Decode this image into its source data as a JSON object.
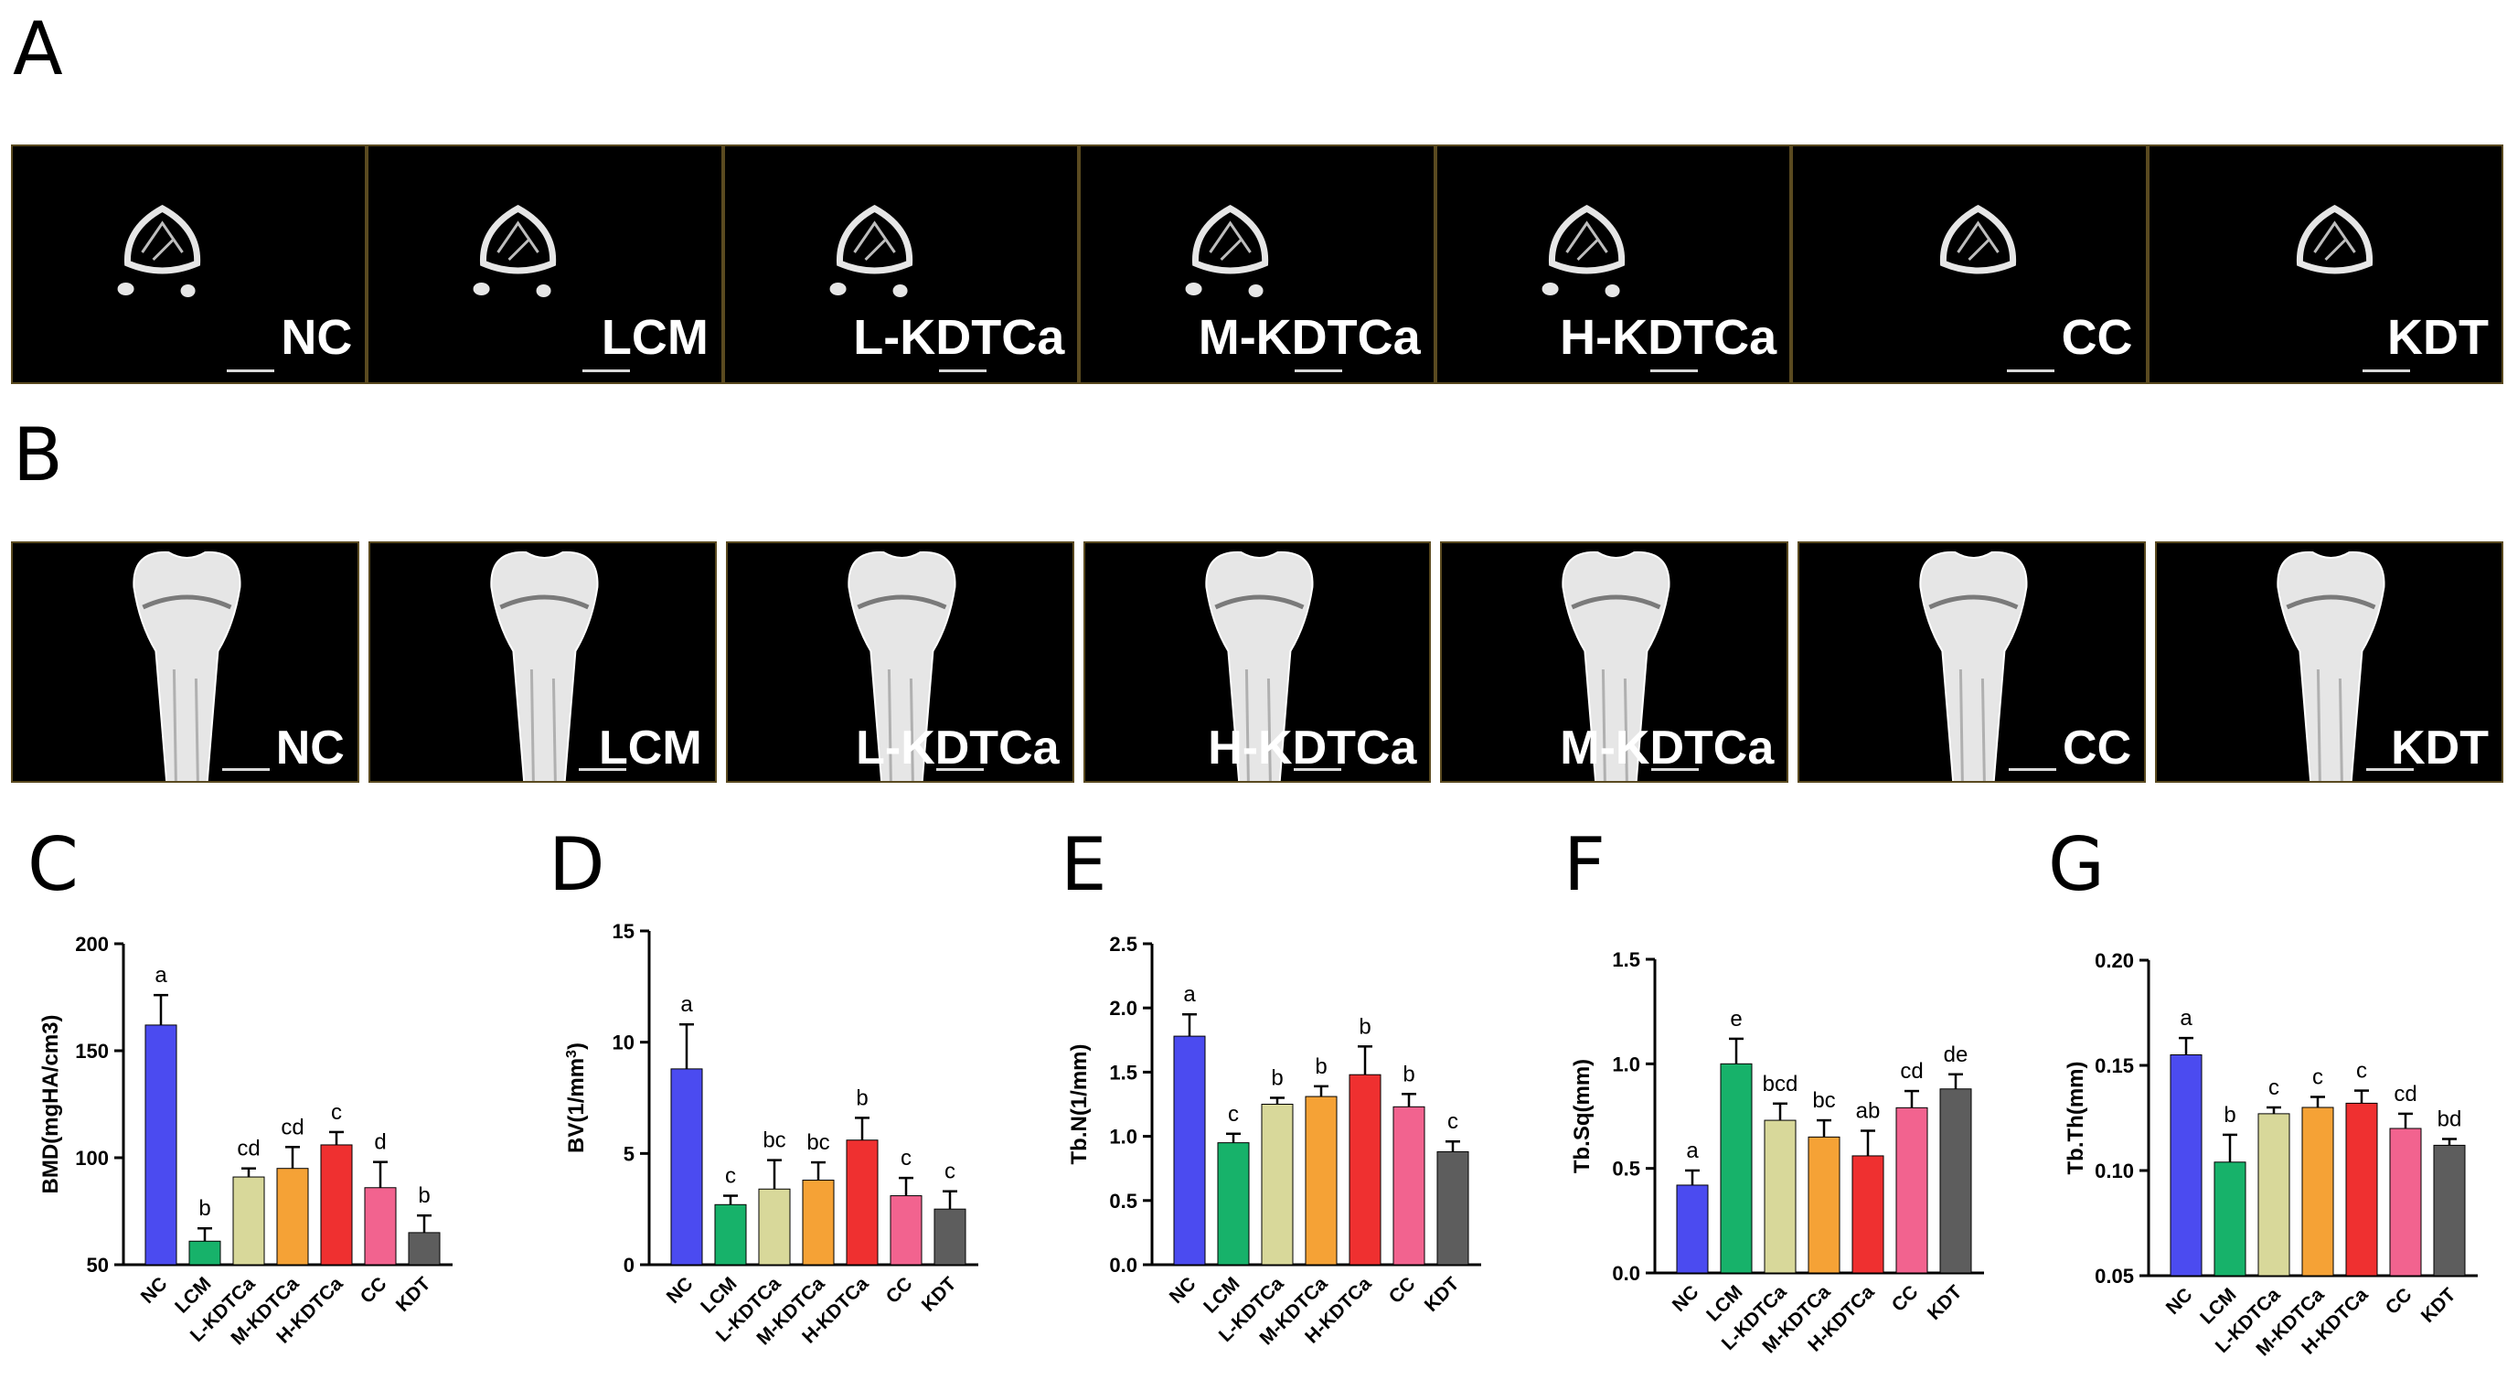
{
  "panels": {
    "a": {
      "letter": "A",
      "tiles": [
        {
          "label": "NC"
        },
        {
          "label": "LCM"
        },
        {
          "label": "L-KDTCa"
        },
        {
          "label": "M-KDTCa"
        },
        {
          "label": "H-KDTCa"
        },
        {
          "label": "CC"
        },
        {
          "label": "KDT"
        }
      ]
    },
    "b": {
      "letter": "B",
      "tiles": [
        {
          "label": "NC"
        },
        {
          "label": "LCM"
        },
        {
          "label": "L-KDTCa"
        },
        {
          "label": "H-KDTCa"
        },
        {
          "label": "M-KDTCa"
        },
        {
          "label": "CC"
        },
        {
          "label": "KDT"
        }
      ]
    }
  },
  "chart_data": [
    {
      "panel": "C",
      "type": "bar",
      "categories": [
        "NC",
        "LCM",
        "L-KDTCa",
        "M-KDTCa",
        "H-KDTCa",
        "CC",
        "KDT"
      ],
      "values": [
        162,
        61,
        91,
        95,
        106,
        86,
        65
      ],
      "errors": [
        14,
        6,
        4,
        10,
        6,
        12,
        8
      ],
      "letters": [
        "a",
        "b",
        "cd",
        "cd",
        "c",
        "d",
        "b"
      ],
      "ylabel": "BMD(mgHA/cm3)",
      "ylim": [
        50,
        200
      ],
      "yticks": [
        "50",
        "100",
        "150",
        "200"
      ],
      "ytick_values": [
        50,
        100,
        150,
        200
      ]
    },
    {
      "panel": "D",
      "type": "bar",
      "categories": [
        "NC",
        "LCM",
        "L-KDTCa",
        "M-KDTCa",
        "H-KDTCa",
        "CC",
        "KDT"
      ],
      "values": [
        8.8,
        2.7,
        3.4,
        3.8,
        5.6,
        3.1,
        2.5
      ],
      "errors": [
        2.0,
        0.4,
        1.3,
        0.8,
        1.0,
        0.8,
        0.8
      ],
      "letters": [
        "a",
        "c",
        "bc",
        "bc",
        "b",
        "c",
        "c"
      ],
      "ylabel": "BV(1/mm",
      "ylabel_sup": "3",
      "ylabel_end": ")",
      "ylim": [
        0,
        15
      ],
      "yticks": [
        "0",
        "5",
        "10",
        "15"
      ],
      "ytick_values": [
        0,
        5,
        10,
        15
      ]
    },
    {
      "panel": "E",
      "type": "bar",
      "categories": [
        "NC",
        "LCM",
        "L-KDTCa",
        "M-KDTCa",
        "H-KDTCa",
        "CC",
        "KDT"
      ],
      "values": [
        1.78,
        0.95,
        1.25,
        1.31,
        1.48,
        1.23,
        0.88
      ],
      "errors": [
        0.17,
        0.07,
        0.05,
        0.08,
        0.22,
        0.1,
        0.08
      ],
      "letters": [
        "a",
        "c",
        "b",
        "b",
        "b",
        "b",
        "c"
      ],
      "ylabel": "Tb.N(1/mm)",
      "ylim": [
        0,
        2.5
      ],
      "yticks": [
        "0.0",
        "0.5",
        "1.0",
        "1.5",
        "2.0",
        "2.5"
      ],
      "ytick_values": [
        0,
        0.5,
        1.0,
        1.5,
        2.0,
        2.5
      ]
    },
    {
      "panel": "F",
      "type": "bar",
      "categories": [
        "NC",
        "LCM",
        "L-KDTCa",
        "M-KDTCa",
        "H-KDTCa",
        "CC",
        "KDT"
      ],
      "values": [
        0.42,
        1.0,
        0.73,
        0.65,
        0.56,
        0.79,
        0.88
      ],
      "errors": [
        0.07,
        0.12,
        0.08,
        0.08,
        0.12,
        0.08,
        0.07
      ],
      "letters": [
        "a",
        "e",
        "bcd",
        "bc",
        "ab",
        "cd",
        "de"
      ],
      "ylabel": "Tb.Sq(mm)",
      "ylim": [
        0,
        1.5
      ],
      "yticks": [
        "0.0",
        "0.5",
        "1.0",
        "1.5"
      ],
      "ytick_values": [
        0,
        0.5,
        1.0,
        1.5
      ]
    },
    {
      "panel": "G",
      "type": "bar",
      "categories": [
        "NC",
        "LCM",
        "L-KDTCa",
        "M-KDTCa",
        "H-KDTCa",
        "CC",
        "KDT"
      ],
      "values": [
        0.155,
        0.104,
        0.127,
        0.13,
        0.132,
        0.12,
        0.112
      ],
      "errors": [
        0.008,
        0.013,
        0.003,
        0.005,
        0.006,
        0.007,
        0.003
      ],
      "letters": [
        "a",
        "b",
        "c",
        "c",
        "c",
        "cd",
        "bd"
      ],
      "ylabel": "Tb.Th(mm)",
      "ylim": [
        0.05,
        0.2
      ],
      "yticks": [
        "0.05",
        "0.10",
        "0.15",
        "0.20"
      ],
      "ytick_values": [
        0.05,
        0.1,
        0.15,
        0.2
      ]
    }
  ],
  "colors": {
    "bars": [
      "#4b4bf0",
      "#17b26a",
      "#d8d89a",
      "#f5a236",
      "#ef3030",
      "#f2638f",
      "#5d5d5d"
    ],
    "tile_bone": "#e6e6e6"
  }
}
